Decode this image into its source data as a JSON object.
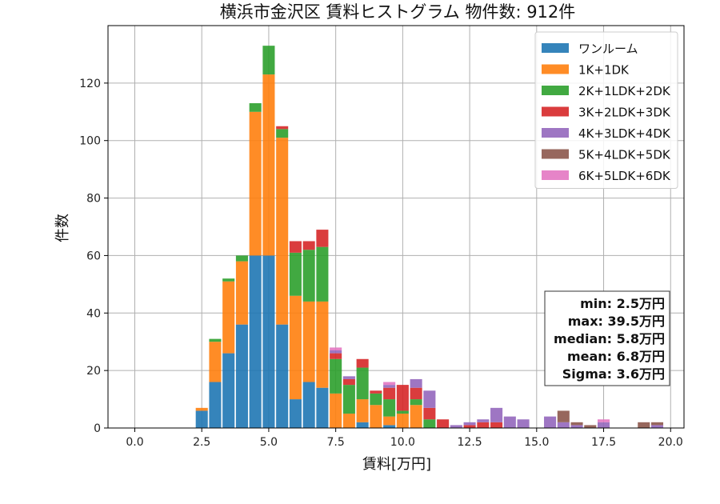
{
  "chart_data": {
    "type": "bar",
    "stacked": true,
    "title": "横浜市金沢区 賃料ヒストグラム  物件数: 912件",
    "xlabel": "賃料[万円]",
    "ylabel": "件数",
    "xlim": [
      -1.0,
      20.5
    ],
    "ylim": [
      0,
      140
    ],
    "xticks": [
      0.0,
      2.5,
      5.0,
      7.5,
      10.0,
      12.5,
      15.0,
      17.5,
      20.0
    ],
    "xtick_labels": [
      "0.0",
      "2.5",
      "5.0",
      "7.5",
      "10.0",
      "12.5",
      "15.0",
      "17.5",
      "20.0"
    ],
    "yticks": [
      0,
      20,
      40,
      60,
      80,
      100,
      120
    ],
    "ytick_labels": [
      "0",
      "20",
      "40",
      "60",
      "80",
      "100",
      "120"
    ],
    "grid": true,
    "legend_position": "top-right",
    "bin_width": 0.5,
    "x": [
      2.5,
      3.0,
      3.5,
      4.0,
      4.5,
      5.0,
      5.5,
      6.0,
      6.5,
      7.0,
      7.5,
      8.0,
      8.5,
      9.0,
      9.5,
      10.0,
      10.5,
      11.0,
      11.5,
      12.0,
      12.5,
      13.0,
      13.5,
      14.0,
      14.5,
      15.0,
      15.5,
      16.0,
      16.5,
      17.0,
      17.5,
      18.0,
      18.5,
      19.0,
      19.5
    ],
    "series": [
      {
        "name": "ワンルーム",
        "color": "#1f77b4",
        "values": [
          6,
          16,
          26,
          36,
          60,
          60,
          36,
          10,
          16,
          14,
          0,
          0,
          2,
          0,
          1,
          0,
          0,
          0,
          0,
          0,
          0,
          0,
          0,
          0,
          0,
          0,
          0,
          0,
          0,
          0,
          0,
          0,
          0,
          0,
          0
        ]
      },
      {
        "name": "1K+1DK",
        "color": "#ff7f0e",
        "values": [
          1,
          14,
          25,
          22,
          50,
          63,
          65,
          36,
          28,
          30,
          12,
          5,
          8,
          8,
          3,
          5,
          8,
          0,
          0,
          0,
          0,
          0,
          0,
          0,
          0,
          0,
          0,
          0,
          0,
          0,
          0,
          0,
          0,
          0,
          0
        ]
      },
      {
        "name": "2K+1LDK+2DK",
        "color": "#2ca02c",
        "values": [
          0,
          1,
          1,
          2,
          3,
          10,
          3,
          15,
          18,
          19,
          12,
          10,
          11,
          4,
          6,
          1,
          2,
          3,
          0,
          0,
          0,
          0,
          0,
          0,
          0,
          0,
          0,
          0,
          0,
          0,
          0,
          0,
          0,
          0,
          0
        ]
      },
      {
        "name": "3K+2LDK+3DK",
        "color": "#d62728",
        "values": [
          0,
          0,
          0,
          0,
          0,
          0,
          1,
          4,
          3,
          6,
          2,
          2,
          3,
          1,
          4,
          9,
          4,
          4,
          3,
          0,
          1,
          2,
          2,
          0,
          0,
          0,
          0,
          0,
          0,
          0,
          0,
          0,
          0,
          0,
          0
        ]
      },
      {
        "name": "4K+3LDK+4DK",
        "color": "#9467bd",
        "values": [
          0,
          0,
          0,
          0,
          0,
          0,
          0,
          0,
          0,
          0,
          1,
          1,
          0,
          0,
          1,
          0,
          3,
          6,
          0,
          1,
          1,
          1,
          5,
          4,
          3,
          0,
          4,
          2,
          1,
          0,
          2,
          0,
          0,
          0,
          1
        ]
      },
      {
        "name": "5K+4LDK+5DK",
        "color": "#8c564b",
        "values": [
          0,
          0,
          0,
          0,
          0,
          0,
          0,
          0,
          0,
          0,
          0,
          0,
          0,
          0,
          0,
          0,
          0,
          0,
          0,
          0,
          0,
          0,
          0,
          0,
          0,
          0,
          0,
          4,
          1,
          1,
          0,
          0,
          0,
          2,
          1
        ]
      },
      {
        "name": "6K+5LDK+6DK",
        "color": "#e377c2",
        "values": [
          0,
          0,
          0,
          0,
          0,
          0,
          0,
          0,
          0,
          0,
          1,
          0,
          0,
          0,
          1,
          0,
          0,
          0,
          0,
          0,
          0,
          0,
          0,
          0,
          0,
          0,
          0,
          0,
          0,
          0,
          1,
          0,
          0,
          0,
          0
        ]
      }
    ],
    "stats": [
      "min: 2.5万円",
      "max: 39.5万円",
      "median: 5.8万円",
      "mean: 6.8万円",
      "Sigma: 3.6万円"
    ]
  }
}
